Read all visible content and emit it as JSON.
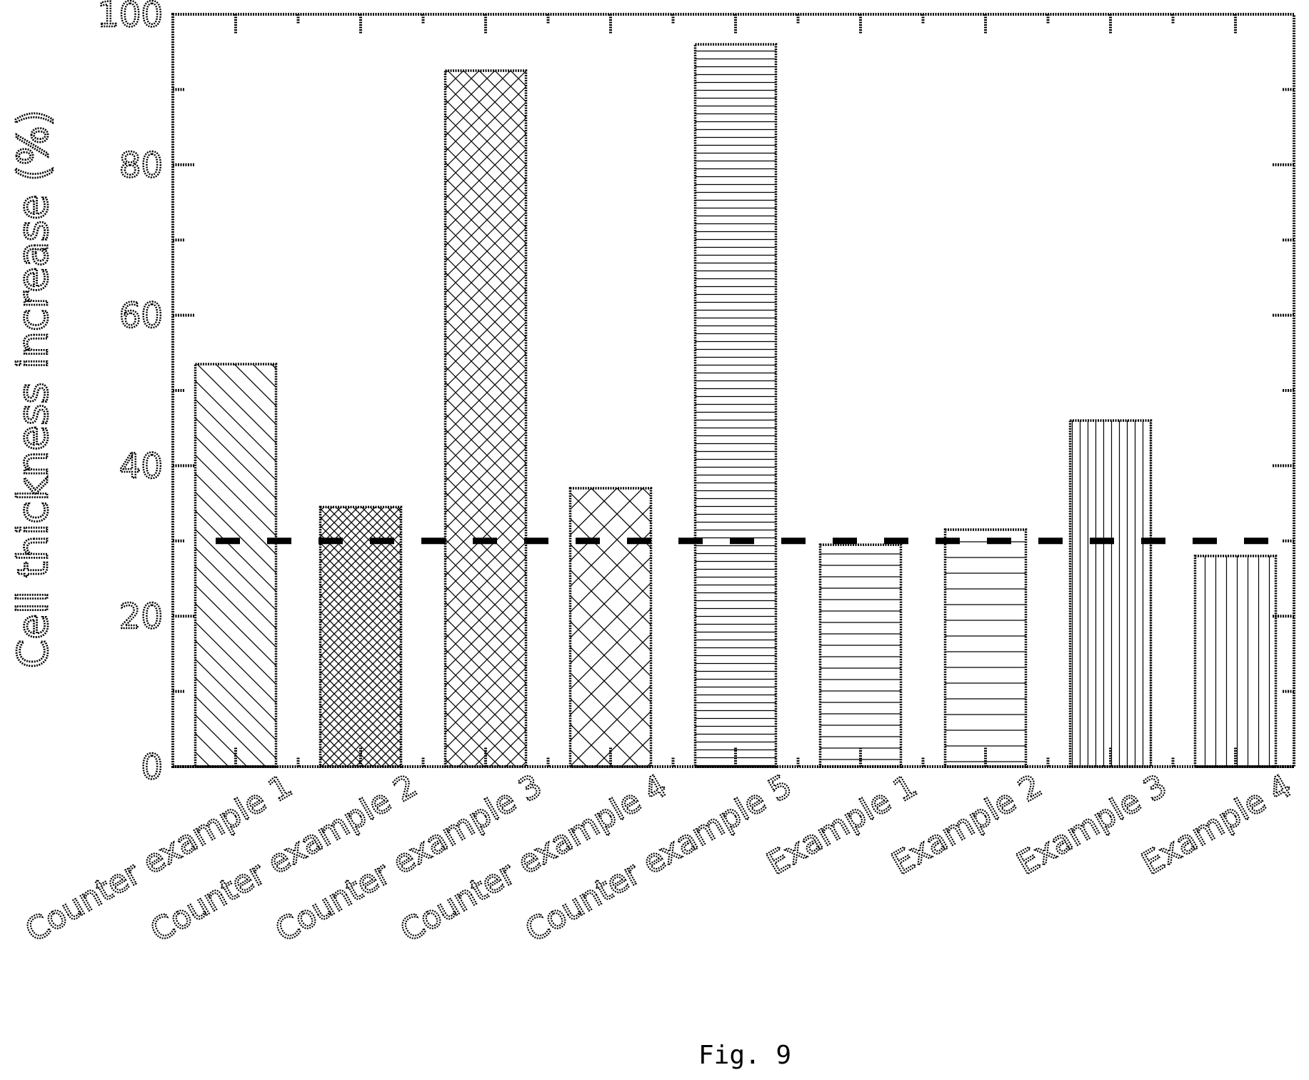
{
  "chart_data": {
    "type": "bar",
    "categories": [
      "Counter example 1",
      "Counter example 2",
      "Counter example 3",
      "Counter example 4",
      "Counter example 5",
      "Example 1",
      "Example 2",
      "Example 3",
      "Example 4"
    ],
    "values": [
      53.5,
      34.5,
      92.5,
      37,
      96,
      29.5,
      31.5,
      46,
      28
    ],
    "patterns": [
      "diagonal-back",
      "fine-crosshatch",
      "crosshatch-dense",
      "crosshatch-wide",
      "horizontal-dense",
      "horizontal-medium",
      "horizontal-sparse",
      "vertical-dense",
      "vertical-medium"
    ],
    "reference_line": 30,
    "ylabel": "Cell thickness increase (%)",
    "xlabel": "",
    "title": "",
    "ylim": [
      0,
      100
    ],
    "yticks": [
      0,
      20,
      40,
      60,
      80,
      100
    ],
    "ytick_labels": [
      "0",
      "20",
      "40",
      "60",
      "80",
      "100"
    ],
    "grid": false,
    "legend": "none"
  },
  "caption": "Fig. 9",
  "colors": {
    "ink": "#000000",
    "background": "#ffffff"
  }
}
